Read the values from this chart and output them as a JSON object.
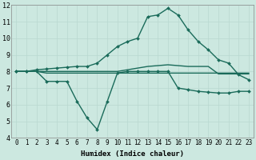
{
  "xlabel": "Humidex (Indice chaleur)",
  "xlim": [
    -0.5,
    23.5
  ],
  "ylim": [
    4,
    12
  ],
  "yticks": [
    4,
    5,
    6,
    7,
    8,
    9,
    10,
    11,
    12
  ],
  "xticks": [
    0,
    1,
    2,
    3,
    4,
    5,
    6,
    7,
    8,
    9,
    10,
    11,
    12,
    13,
    14,
    15,
    16,
    17,
    18,
    19,
    20,
    21,
    22,
    23
  ],
  "bg_color": "#cce8e0",
  "line_color": "#1a6b5a",
  "grid_color": "#b8d8d0",
  "lines": [
    {
      "x": [
        0,
        1,
        2,
        3,
        4,
        5,
        6,
        7,
        8,
        9,
        10,
        11,
        12,
        13,
        14,
        15,
        16,
        17,
        18,
        19,
        20,
        21,
        22,
        23
      ],
      "y": [
        8.0,
        8.0,
        8.1,
        8.15,
        8.2,
        8.25,
        8.3,
        8.3,
        8.5,
        9.0,
        9.5,
        9.8,
        10.0,
        11.3,
        11.4,
        11.8,
        11.4,
        10.5,
        9.8,
        9.3,
        8.7,
        8.5,
        7.8,
        7.5
      ],
      "marker": "D",
      "markersize": 2.0,
      "linewidth": 1.0,
      "has_marker": true
    },
    {
      "x": [
        0,
        1,
        2,
        3,
        4,
        5,
        6,
        7,
        8,
        9,
        10,
        11,
        12,
        13,
        14,
        15,
        16,
        17,
        18,
        19,
        20,
        21,
        22,
        23
      ],
      "y": [
        8.0,
        8.0,
        8.0,
        8.0,
        8.0,
        8.0,
        8.0,
        8.0,
        8.0,
        8.0,
        8.0,
        8.1,
        8.2,
        8.3,
        8.35,
        8.4,
        8.35,
        8.3,
        8.3,
        8.3,
        7.85,
        7.85,
        7.85,
        7.85
      ],
      "marker": null,
      "markersize": 0,
      "linewidth": 1.0,
      "has_marker": false
    },
    {
      "x": [
        0,
        1,
        2,
        3,
        4,
        5,
        6,
        7,
        8,
        9,
        10,
        11,
        12,
        13,
        14,
        15,
        16,
        17,
        18,
        19,
        20,
        21,
        22,
        23
      ],
      "y": [
        8.0,
        8.0,
        8.0,
        7.4,
        7.4,
        7.4,
        6.2,
        5.2,
        4.5,
        6.2,
        7.9,
        8.0,
        8.0,
        8.0,
        8.0,
        8.0,
        7.0,
        6.9,
        6.8,
        6.75,
        6.7,
        6.7,
        6.8,
        6.8
      ],
      "marker": "D",
      "markersize": 2.0,
      "linewidth": 1.0,
      "has_marker": true
    },
    {
      "x": [
        0,
        1,
        2,
        3,
        4,
        5,
        6,
        7,
        8,
        9,
        10,
        11,
        12,
        13,
        14,
        15,
        16,
        17,
        18,
        19,
        20,
        21,
        22,
        23
      ],
      "y": [
        8.0,
        8.0,
        8.0,
        7.9,
        7.9,
        7.9,
        7.9,
        7.9,
        7.9,
        7.9,
        7.9,
        7.9,
        7.9,
        7.9,
        7.9,
        7.9,
        7.9,
        7.9,
        7.9,
        7.9,
        7.9,
        7.9,
        7.9,
        7.9
      ],
      "marker": null,
      "markersize": 0,
      "linewidth": 1.0,
      "has_marker": false
    }
  ]
}
